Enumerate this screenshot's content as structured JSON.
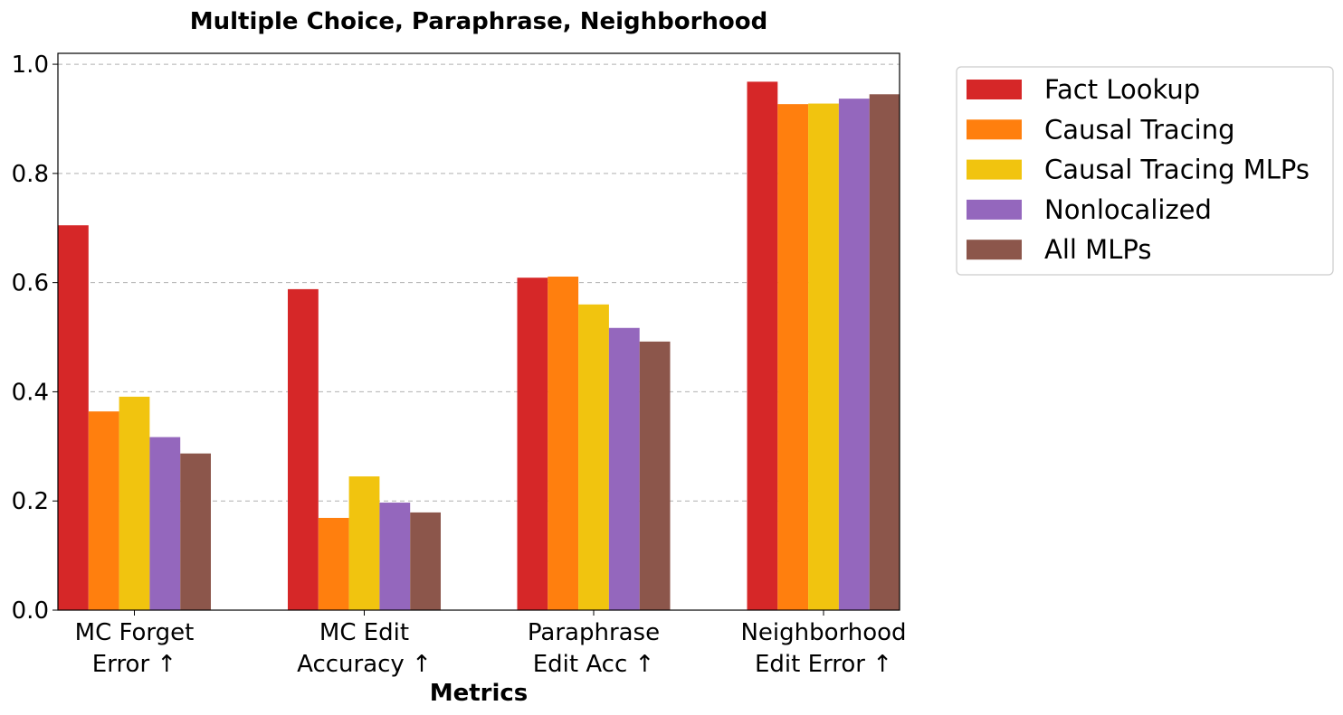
{
  "chart_data": {
    "type": "bar",
    "title": "Multiple Choice, Paraphrase, Neighborhood",
    "xlabel": "Metrics",
    "ylabel": "",
    "ylim": [
      0,
      1.02
    ],
    "yticks": [
      "0.0",
      "0.2",
      "0.4",
      "0.6",
      "0.8",
      "1.0"
    ],
    "grid": "horizontal dashed",
    "legend_position": "outside right, top",
    "categories": [
      [
        "MC Forget",
        "Error ↑"
      ],
      [
        "MC Edit",
        "Accuracy ↑"
      ],
      [
        "Paraphrase",
        "Edit Acc ↑"
      ],
      [
        "Neighborhood",
        "Edit Error ↑"
      ]
    ],
    "series": [
      {
        "name": "Fact Lookup",
        "color": "#d62728",
        "values": [
          0.705,
          0.588,
          0.609,
          0.968
        ]
      },
      {
        "name": "Causal Tracing",
        "color": "#ff7f0e",
        "values": [
          0.364,
          0.169,
          0.611,
          0.927
        ]
      },
      {
        "name": "Causal Tracing MLPs",
        "color": "#f1c40f",
        "values": [
          0.391,
          0.245,
          0.56,
          0.928
        ]
      },
      {
        "name": "Nonlocalized",
        "color": "#9467bd",
        "values": [
          0.317,
          0.197,
          0.517,
          0.937
        ]
      },
      {
        "name": "All MLPs",
        "color": "#8c564b",
        "values": [
          0.287,
          0.179,
          0.492,
          0.945
        ]
      }
    ]
  }
}
